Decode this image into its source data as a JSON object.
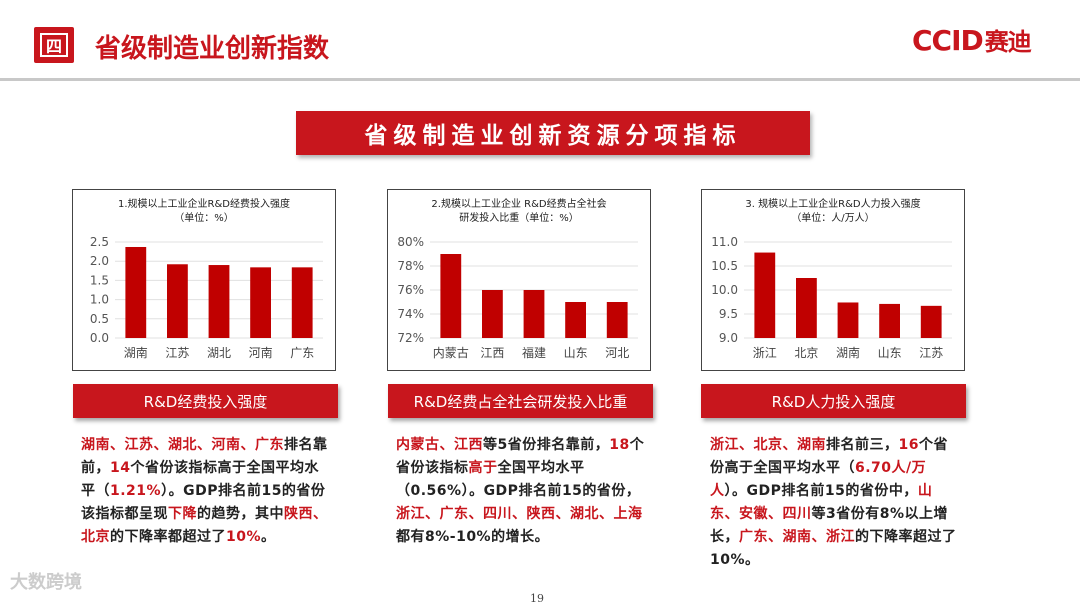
{
  "header": {
    "section_number": "四",
    "title": "省级制造业创新指数",
    "logo_main": "CCID",
    "logo_sub": "赛迪"
  },
  "banner": "省级制造业创新资源分项指标",
  "colors": {
    "accent": "#c8161d",
    "bar": "#c00000"
  },
  "chart_data": [
    {
      "type": "bar",
      "title": "1.规模以上工业企业R&D经费投入强度",
      "subtitle": "（单位：%）",
      "categories": [
        "湖南",
        "江苏",
        "湖北",
        "河南",
        "广东"
      ],
      "values": [
        2.37,
        1.92,
        1.9,
        1.84,
        1.84
      ],
      "yticks": [
        "2.5",
        "2.0",
        "1.5",
        "1.0",
        "0.5",
        "0.0"
      ],
      "ylim": [
        0,
        2.5
      ],
      "grid": true
    },
    {
      "type": "bar",
      "title": "2.规模以上工业企业 R&D经费占全社会",
      "subtitle": "研发投入比重（单位：%）",
      "categories": [
        "内蒙古",
        "江西",
        "福建",
        "山东",
        "河北"
      ],
      "values": [
        79,
        76,
        76,
        75,
        75
      ],
      "yticks": [
        "80%",
        "78%",
        "76%",
        "74%",
        "72%"
      ],
      "ylim": [
        72,
        80
      ],
      "grid": true
    },
    {
      "type": "bar",
      "title": "3. 规模以上工业企业R&D人力投入强度",
      "subtitle": "（单位：人/万人）",
      "categories": [
        "浙江",
        "北京",
        "湖南",
        "山东",
        "江苏"
      ],
      "values": [
        10.78,
        10.25,
        9.74,
        9.71,
        9.67
      ],
      "yticks": [
        "11.0",
        "10.5",
        "10.0",
        "9.5",
        "9.0"
      ],
      "ylim": [
        9.0,
        11.0
      ],
      "grid": true
    }
  ],
  "labels": [
    "R&D经费投入强度",
    "R&D经费占全社会研发投入比重",
    "R&D人力投入强度"
  ],
  "descriptions": [
    [
      {
        "t": "湖南、江苏、湖北、河南、广东",
        "r": true
      },
      {
        "t": "排名靠前，",
        "r": false
      },
      {
        "t": "14",
        "r": true
      },
      {
        "t": "个省份该指标高于全国平均水平（",
        "r": false
      },
      {
        "t": "1.21%",
        "r": true
      },
      {
        "t": "）。GDP排名前15的省份该指标都呈现",
        "r": false
      },
      {
        "t": "下降",
        "r": true
      },
      {
        "t": "的趋势，其中",
        "r": false
      },
      {
        "t": "陕西、北京",
        "r": true
      },
      {
        "t": "的下降率都超过了",
        "r": false
      },
      {
        "t": "10%",
        "r": true
      },
      {
        "t": "。",
        "r": false
      }
    ],
    [
      {
        "t": "内蒙古、江西",
        "r": true
      },
      {
        "t": "等5省份排名靠前，",
        "r": false
      },
      {
        "t": "18",
        "r": true
      },
      {
        "t": "个省份该指标",
        "r": false
      },
      {
        "t": "高于",
        "r": true
      },
      {
        "t": "全国平均水平（0.56%）。GDP排名前15的省份，",
        "r": false
      },
      {
        "t": "浙江、广东、四川、陕西、湖北、上海",
        "r": true
      },
      {
        "t": "都有8%-10%的增长。",
        "r": false
      }
    ],
    [
      {
        "t": "浙江、北京、湖南",
        "r": true
      },
      {
        "t": "排名前三，",
        "r": false
      },
      {
        "t": "16",
        "r": true
      },
      {
        "t": "个省份高于全国平均水平（",
        "r": false
      },
      {
        "t": "6.70人/万人",
        "r": true
      },
      {
        "t": "）。GDP排名前15的省份中，",
        "r": false
      },
      {
        "t": "山东、安徽、四川",
        "r": true
      },
      {
        "t": "等3省份有8%以上增长，",
        "r": false
      },
      {
        "t": "广东、湖南、浙江",
        "r": true
      },
      {
        "t": "的下降率超过了10%。",
        "r": false
      }
    ]
  ],
  "page_number": "19",
  "watermark": "大数跨境"
}
